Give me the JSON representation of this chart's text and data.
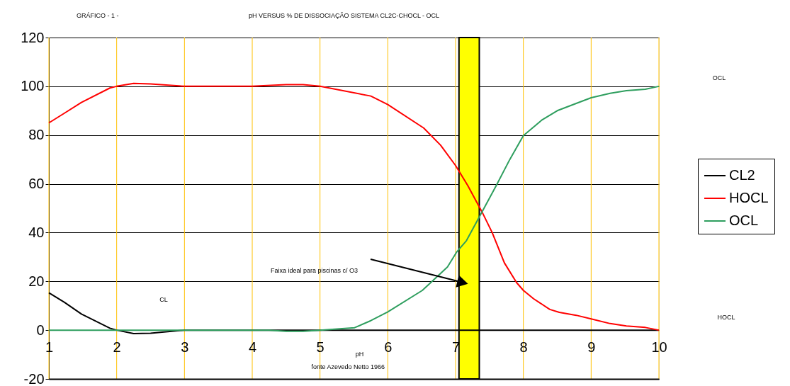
{
  "chart_data": {
    "type": "line",
    "title": "pH VERSUS % DE DISSOCIAÇÃO SISTEMA CL2C-CHOCL - OCL",
    "xlabel": "pH",
    "xlim": [
      1,
      10
    ],
    "xticks": [
      1,
      2,
      3,
      4,
      5,
      6,
      7,
      8,
      9,
      10
    ],
    "ylim": [
      -20,
      120
    ],
    "yticks": [
      -20,
      0,
      20,
      40,
      60,
      80,
      100,
      120
    ],
    "grid": true,
    "legend": "right",
    "line_style": "solid",
    "marker": "none",
    "series": [
      {
        "name": "CL2",
        "color": "#000000",
        "x": [
          1,
          1.23,
          1.48,
          1.9,
          2,
          2.25,
          2.5,
          3,
          4,
          5,
          6,
          7,
          8,
          9,
          10
        ],
        "values": [
          15.3,
          11.4,
          6.6,
          0.8,
          0,
          -1.4,
          -1.3,
          0,
          0,
          0,
          0,
          0,
          0,
          0,
          0
        ]
      },
      {
        "name": "HOCL",
        "color": "#ff0000",
        "x": [
          1,
          1.23,
          1.48,
          1.9,
          2,
          2.25,
          2.5,
          3,
          4,
          4.5,
          4.75,
          5,
          5.75,
          6,
          6.53,
          6.78,
          7,
          7.18,
          7.39,
          7.54,
          7.72,
          7.9,
          8,
          8.15,
          8.39,
          8.53,
          8.78,
          9,
          9.28,
          9.52,
          9.8,
          10
        ],
        "values": [
          85,
          89,
          93.4,
          99.3,
          100,
          101.2,
          101,
          100,
          100,
          100.7,
          100.7,
          100,
          96,
          92.5,
          82.9,
          75.8,
          67.5,
          59.3,
          48.5,
          40,
          27.6,
          19.5,
          16.3,
          12.9,
          8.5,
          7.3,
          6.1,
          4.6,
          2.7,
          1.7,
          1.1,
          0
        ]
      },
      {
        "name": "OCL",
        "color": "#2e9e5e",
        "x": [
          1,
          2,
          3,
          4,
          4.25,
          4.5,
          4.75,
          5,
          5.51,
          5.75,
          6,
          6.51,
          6.88,
          7.02,
          7.16,
          7.39,
          7.6,
          7.8,
          8,
          8.27,
          8.5,
          8.78,
          9,
          9.28,
          9.52,
          9.8,
          10
        ],
        "values": [
          0,
          0,
          0,
          0,
          0,
          -0.5,
          -0.5,
          0,
          1,
          3.9,
          7.5,
          16.3,
          25.9,
          32.2,
          36.7,
          48.5,
          59.3,
          70,
          79.8,
          86.1,
          90,
          93,
          95.3,
          97.1,
          98.2,
          98.8,
          100
        ]
      }
    ],
    "bands": [
      {
        "axis": "x",
        "from": 7.05,
        "to": 7.35,
        "color": "#ffff00"
      }
    ],
    "annotations": [
      "GRÁFICO - 1 -",
      "fonte Azevedo Netto 1966",
      "Faixa ideal para piscinas c/ O3",
      "CL",
      "OCL",
      "HOCL"
    ]
  }
}
